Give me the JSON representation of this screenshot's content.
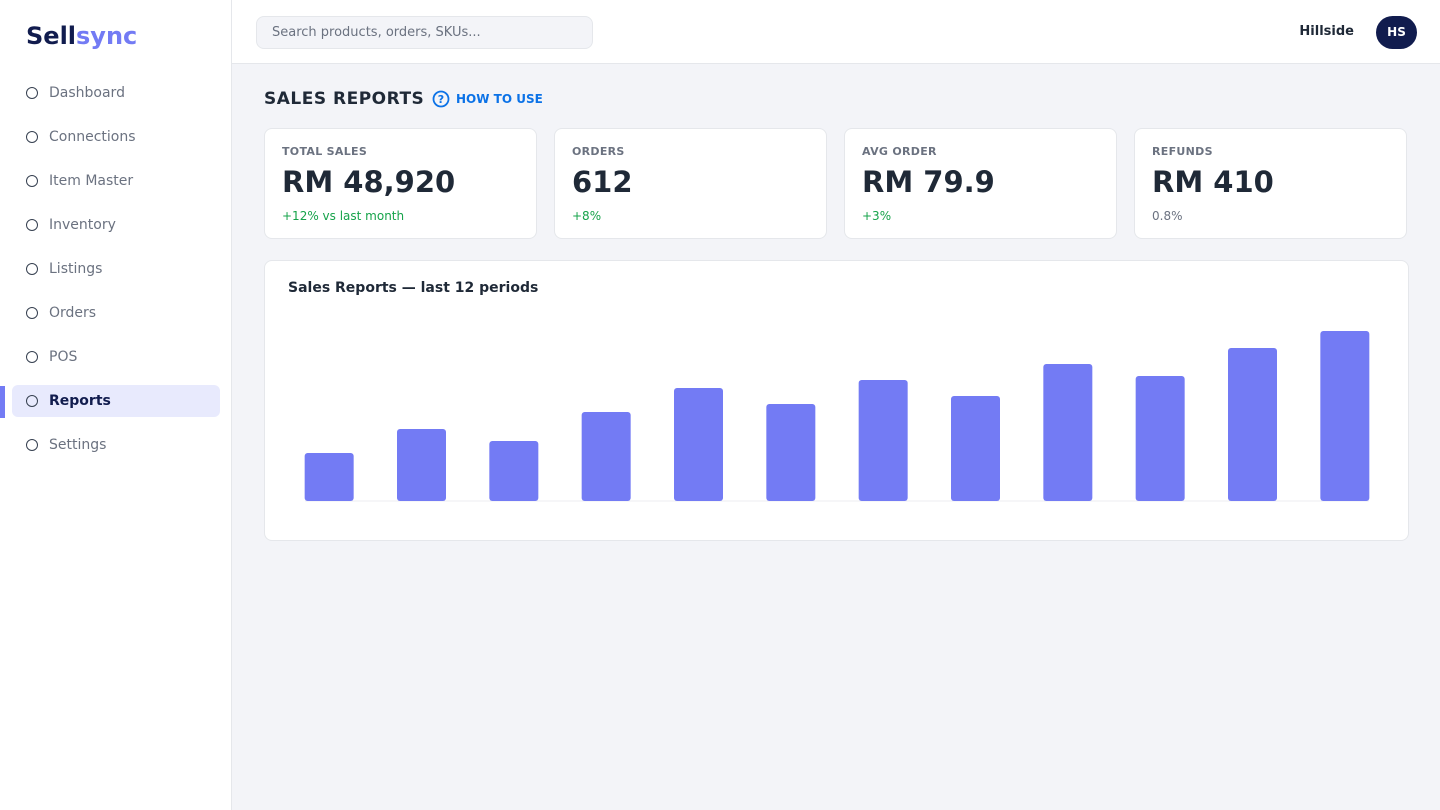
{
  "brand": {
    "first": "Sell",
    "second": "sync"
  },
  "search_placeholder": "Search products, orders, SKUs...",
  "user": {
    "name": "Hillside",
    "initials": "HS"
  },
  "nav": [
    {
      "label": "Dashboard"
    },
    {
      "label": "Connections"
    },
    {
      "label": "Item Master"
    },
    {
      "label": "Inventory"
    },
    {
      "label": "Listings"
    },
    {
      "label": "Orders"
    },
    {
      "label": "POS"
    },
    {
      "label": "Reports",
      "active": true
    },
    {
      "label": "Settings"
    }
  ],
  "page": {
    "title": "SALES REPORTS",
    "help": "HOW TO USE"
  },
  "kpis": [
    {
      "label": "TOTAL SALES",
      "value": "RM 48,920",
      "delta": "+12% vs last month",
      "delta_color": "#16a34a"
    },
    {
      "label": "ORDERS",
      "value": "612",
      "delta": "+8%",
      "delta_color": "#16a34a"
    },
    {
      "label": "AVG ORDER",
      "value": "RM 79.9",
      "delta": "+3%",
      "delta_color": "#16a34a"
    },
    {
      "label": "REFUNDS",
      "value": "RM 410",
      "delta": "0.8%",
      "delta_color": "#6b7280"
    }
  ],
  "chart_data": {
    "type": "bar",
    "title": "Sales Reports — last 12 periods",
    "values": [
      48,
      72,
      60,
      89,
      113,
      97,
      121,
      105,
      137,
      125,
      153,
      170
    ],
    "ylim": [
      0,
      170
    ],
    "color": "#737bf4"
  }
}
